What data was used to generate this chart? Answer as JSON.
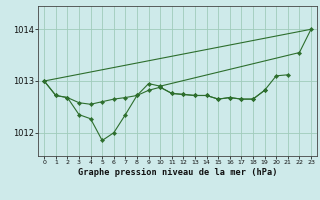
{
  "title": "Graphe pression niveau de la mer (hPa)",
  "background_color": "#ceeaea",
  "grid_color": "#a0ccbb",
  "line_color": "#2d6e2d",
  "xlim": [
    -0.5,
    23.5
  ],
  "ylim": [
    1011.55,
    1014.45
  ],
  "yticks": [
    1012,
    1013,
    1014
  ],
  "xticks": [
    0,
    1,
    2,
    3,
    4,
    5,
    6,
    7,
    8,
    9,
    10,
    11,
    12,
    13,
    14,
    15,
    16,
    17,
    18,
    19,
    20,
    21,
    22,
    23
  ],
  "series": [
    {
      "x": [
        0,
        23
      ],
      "y": [
        1013.0,
        1014.0
      ],
      "marker": false
    },
    {
      "x": [
        0,
        1,
        2,
        3,
        4,
        5,
        6,
        7,
        8,
        9,
        10,
        22,
        23
      ],
      "y": [
        1013.0,
        1012.72,
        1012.68,
        1012.35,
        1012.27,
        1011.85,
        1012.0,
        1012.35,
        1012.72,
        1012.95,
        1012.9,
        1013.55,
        1014.0
      ],
      "marker": true
    },
    {
      "x": [
        0,
        1,
        2,
        3,
        4,
        5,
        6,
        7,
        8,
        9,
        10,
        11,
        12,
        13,
        14,
        15,
        16,
        17,
        18,
        19,
        20,
        21
      ],
      "y": [
        1013.0,
        1012.72,
        1012.68,
        1012.58,
        1012.55,
        1012.6,
        1012.65,
        1012.68,
        1012.72,
        1012.82,
        1012.88,
        1012.76,
        1012.74,
        1012.72,
        1012.72,
        1012.65,
        1012.68,
        1012.65,
        1012.65,
        1012.82,
        1013.1,
        1013.12
      ],
      "marker": true
    },
    {
      "x": [
        10,
        11,
        12,
        13,
        14,
        15,
        16,
        17,
        18,
        19
      ],
      "y": [
        1012.88,
        1012.76,
        1012.74,
        1012.72,
        1012.72,
        1012.65,
        1012.68,
        1012.65,
        1012.65,
        1012.82
      ],
      "marker": true
    }
  ]
}
